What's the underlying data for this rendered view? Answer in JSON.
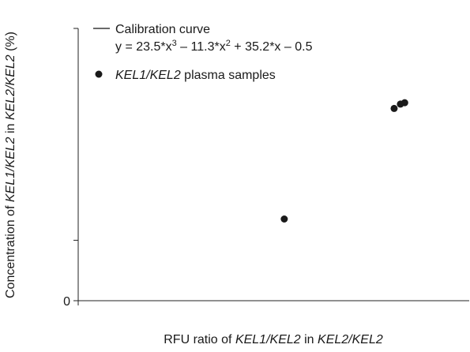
{
  "chart_data": {
    "type": "scatter",
    "title": "",
    "xlabel": {
      "prefix": "RFU ratio of ",
      "italic_1": "KEL1/KEL2",
      "middle": " in ",
      "italic_2": "KEL2/KEL2",
      "suffix": ""
    },
    "ylabel": {
      "prefix": "Concentration of ",
      "italic_1": "KEL1/KEL2",
      "middle": " in ",
      "italic_2": "KEL2/KEL2",
      "suffix": " (%)"
    },
    "xlim": [
      0,
      1
    ],
    "ylim": [
      0,
      1
    ],
    "yticks": [
      {
        "value": 0,
        "label": "0"
      },
      {
        "value": 0.222,
        "label": ""
      },
      {
        "value": 1,
        "label": ""
      }
    ],
    "grid": false,
    "legend": {
      "position": "top-left",
      "line_label": "Calibration curve",
      "equation": {
        "y_prefix": "y = 23.5*x",
        "exp_3": "3",
        "mid_1": " – 11.3*x",
        "exp_2": "2",
        "rest": " + 35.2*x – 0.5"
      },
      "points_label_italic": "KEL1/KEL2",
      "points_label_rest": " plasma samples"
    },
    "series": [
      {
        "name": "KEL1/KEL2 plasma samples",
        "kind": "points",
        "x": [
          0.527,
          0.808,
          0.824,
          0.835
        ],
        "y": [
          0.3,
          0.706,
          0.722,
          0.727
        ]
      }
    ]
  }
}
